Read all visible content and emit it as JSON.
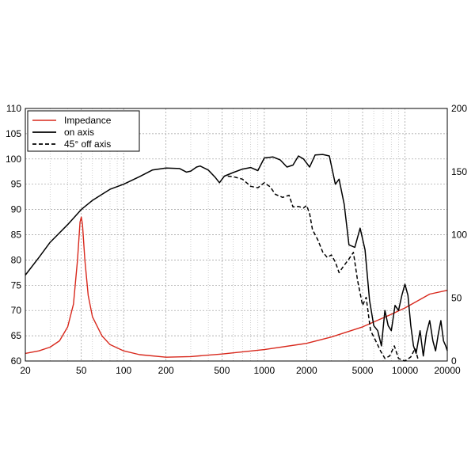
{
  "chart_data": {
    "type": "line",
    "x_scale": "log",
    "xlim": [
      20,
      20000
    ],
    "ylim_left": [
      60,
      110
    ],
    "ylim_right": [
      0,
      200
    ],
    "grid": true,
    "legend_position": "top-left",
    "x_ticks": [
      "20",
      "50",
      "100",
      "200",
      "500",
      "1000",
      "2000",
      "5000",
      "10000",
      "20000"
    ],
    "y_ticks_left": [
      "60",
      "65",
      "70",
      "75",
      "80",
      "85",
      "90",
      "95",
      "100",
      "105",
      "110"
    ],
    "y_ticks_right": [
      "0",
      "50",
      "100",
      "150",
      "200"
    ],
    "colors": {
      "impedance": "#d8281c",
      "on_axis": "#000000",
      "off_axis": "#000000"
    },
    "series": [
      {
        "name": "Impedance",
        "axis": "right",
        "style": "solid",
        "color": "#d8281c",
        "points": [
          [
            20,
            6
          ],
          [
            25,
            8
          ],
          [
            30,
            11
          ],
          [
            35,
            16
          ],
          [
            40,
            27
          ],
          [
            44,
            45
          ],
          [
            47,
            80
          ],
          [
            49,
            110
          ],
          [
            50,
            114
          ],
          [
            51,
            108
          ],
          [
            53,
            80
          ],
          [
            56,
            52
          ],
          [
            60,
            35
          ],
          [
            70,
            20
          ],
          [
            80,
            13
          ],
          [
            100,
            8
          ],
          [
            130,
            5
          ],
          [
            200,
            3
          ],
          [
            300,
            3.5
          ],
          [
            500,
            5.5
          ],
          [
            1000,
            9
          ],
          [
            2000,
            14
          ],
          [
            3000,
            19
          ],
          [
            5000,
            27
          ],
          [
            8000,
            37
          ],
          [
            10000,
            42
          ],
          [
            15000,
            53
          ],
          [
            20000,
            56
          ]
        ]
      },
      {
        "name": "on axis",
        "axis": "left",
        "style": "solid",
        "color": "#000000",
        "points": [
          [
            20,
            77
          ],
          [
            25,
            80.5
          ],
          [
            30,
            83.5
          ],
          [
            40,
            87
          ],
          [
            50,
            90
          ],
          [
            60,
            91.8
          ],
          [
            80,
            94
          ],
          [
            100,
            95
          ],
          [
            130,
            96.5
          ],
          [
            160,
            97.8
          ],
          [
            200,
            98.2
          ],
          [
            250,
            98.1
          ],
          [
            280,
            97.4
          ],
          [
            300,
            97.6
          ],
          [
            330,
            98.4
          ],
          [
            350,
            98.6
          ],
          [
            400,
            97.8
          ],
          [
            450,
            96.3
          ],
          [
            480,
            95.3
          ],
          [
            520,
            96.6
          ],
          [
            600,
            97.3
          ],
          [
            700,
            98.0
          ],
          [
            800,
            98.3
          ],
          [
            900,
            97.7
          ],
          [
            1000,
            100.2
          ],
          [
            1150,
            100.4
          ],
          [
            1300,
            99.8
          ],
          [
            1450,
            98.4
          ],
          [
            1600,
            98.8
          ],
          [
            1750,
            100.6
          ],
          [
            1900,
            100.0
          ],
          [
            2100,
            98.4
          ],
          [
            2300,
            100.8
          ],
          [
            2600,
            100.9
          ],
          [
            2900,
            100.6
          ],
          [
            3200,
            95.0
          ],
          [
            3400,
            96.0
          ],
          [
            3700,
            91.0
          ],
          [
            4000,
            83.0
          ],
          [
            4400,
            82.5
          ],
          [
            4800,
            86.3
          ],
          [
            5200,
            82.0
          ],
          [
            5600,
            72.0
          ],
          [
            6000,
            67.0
          ],
          [
            6400,
            66.0
          ],
          [
            6800,
            63.0
          ],
          [
            7200,
            70.0
          ],
          [
            7600,
            67.0
          ],
          [
            8000,
            66.0
          ],
          [
            8500,
            71.0
          ],
          [
            9000,
            70.0
          ],
          [
            9500,
            73.0
          ],
          [
            10000,
            75.2
          ],
          [
            10500,
            73.0
          ],
          [
            11000,
            67.0
          ],
          [
            11500,
            63.0
          ],
          [
            12000,
            61.5
          ],
          [
            12800,
            66.0
          ],
          [
            13500,
            61.0
          ],
          [
            14200,
            65.5
          ],
          [
            15000,
            68.0
          ],
          [
            15800,
            64.0
          ],
          [
            16500,
            62.0
          ],
          [
            17300,
            65.5
          ],
          [
            18000,
            68.0
          ],
          [
            18800,
            64.0
          ],
          [
            19500,
            63.0
          ],
          [
            20000,
            62.0
          ]
        ]
      },
      {
        "name": "45° off axis",
        "axis": "left",
        "style": "dashed",
        "color": "#000000",
        "points": [
          [
            550,
            96.6
          ],
          [
            600,
            96.5
          ],
          [
            700,
            96.0
          ],
          [
            800,
            94.6
          ],
          [
            900,
            94.3
          ],
          [
            1000,
            95.3
          ],
          [
            1100,
            94.5
          ],
          [
            1200,
            93.0
          ],
          [
            1350,
            92.4
          ],
          [
            1500,
            92.8
          ],
          [
            1600,
            90.5
          ],
          [
            1750,
            90.6
          ],
          [
            1900,
            90.3
          ],
          [
            2000,
            90.8
          ],
          [
            2100,
            89.2
          ],
          [
            2200,
            86.0
          ],
          [
            2400,
            84.0
          ],
          [
            2600,
            81.6
          ],
          [
            2800,
            80.5
          ],
          [
            3000,
            81.0
          ],
          [
            3200,
            79.6
          ],
          [
            3400,
            77.5
          ],
          [
            3600,
            78.5
          ],
          [
            4000,
            80.2
          ],
          [
            4300,
            81.5
          ],
          [
            4600,
            76.0
          ],
          [
            5000,
            71.0
          ],
          [
            5300,
            72.6
          ],
          [
            5700,
            66.0
          ],
          [
            6200,
            64.0
          ],
          [
            6700,
            62.0
          ],
          [
            7200,
            60.5
          ],
          [
            7800,
            61.0
          ],
          [
            8400,
            63.0
          ],
          [
            9000,
            60.5
          ],
          [
            10000,
            60.0
          ],
          [
            11000,
            60.8
          ],
          [
            11800,
            62.5
          ],
          [
            12500,
            60.0
          ]
        ]
      }
    ]
  }
}
